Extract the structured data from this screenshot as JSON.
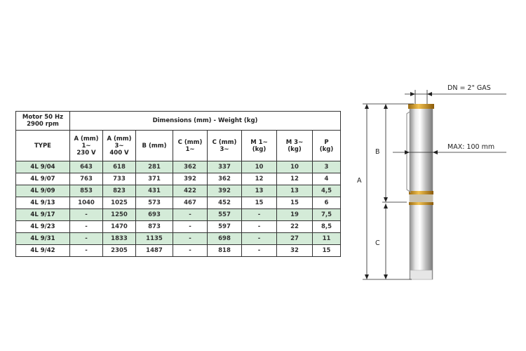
{
  "table": {
    "motor_label": [
      "Motor 50 Hz",
      "2900 rpm"
    ],
    "group_header": "Dimensions (mm) - Weight (kg)",
    "columns": [
      [
        "TYPE"
      ],
      [
        "A (mm)",
        "1~",
        "230 V"
      ],
      [
        "A (mm)",
        "3~",
        "400 V"
      ],
      [
        "B (mm)"
      ],
      [
        "C (mm)",
        "1~"
      ],
      [
        "C (mm)",
        "3~"
      ],
      [
        "M 1~",
        "(kg)"
      ],
      [
        "M 3~",
        "(kg)"
      ],
      [
        "P",
        "(kg)"
      ]
    ],
    "rows": [
      [
        "4L 9/04",
        "643",
        "618",
        "281",
        "362",
        "337",
        "10",
        "10",
        "3"
      ],
      [
        "4L 9/07",
        "763",
        "733",
        "371",
        "392",
        "362",
        "12",
        "12",
        "4"
      ],
      [
        "4L 9/09",
        "853",
        "823",
        "431",
        "422",
        "392",
        "13",
        "13",
        "4,5"
      ],
      [
        "4L 9/13",
        "1040",
        "1025",
        "573",
        "467",
        "452",
        "15",
        "15",
        "6"
      ],
      [
        "4L 9/17",
        "-",
        "1250",
        "693",
        "-",
        "557",
        "-",
        "19",
        "7,5"
      ],
      [
        "4L 9/23",
        "-",
        "1470",
        "873",
        "-",
        "597",
        "-",
        "22",
        "8,5"
      ],
      [
        "4L 9/31",
        "-",
        "1833",
        "1135",
        "-",
        "698",
        "-",
        "27",
        "11"
      ],
      [
        "4L 9/42",
        "-",
        "2305",
        "1487",
        "-",
        "818",
        "-",
        "32",
        "15"
      ]
    ],
    "stripe_color": "#d4ebd8"
  },
  "diagram": {
    "dn_label": "DN  = 2\" GAS",
    "max_label": "MAX: 100 mm",
    "dim_a": "A",
    "dim_b": "B",
    "dim_c": "C",
    "brass_color": "#c8901e"
  }
}
